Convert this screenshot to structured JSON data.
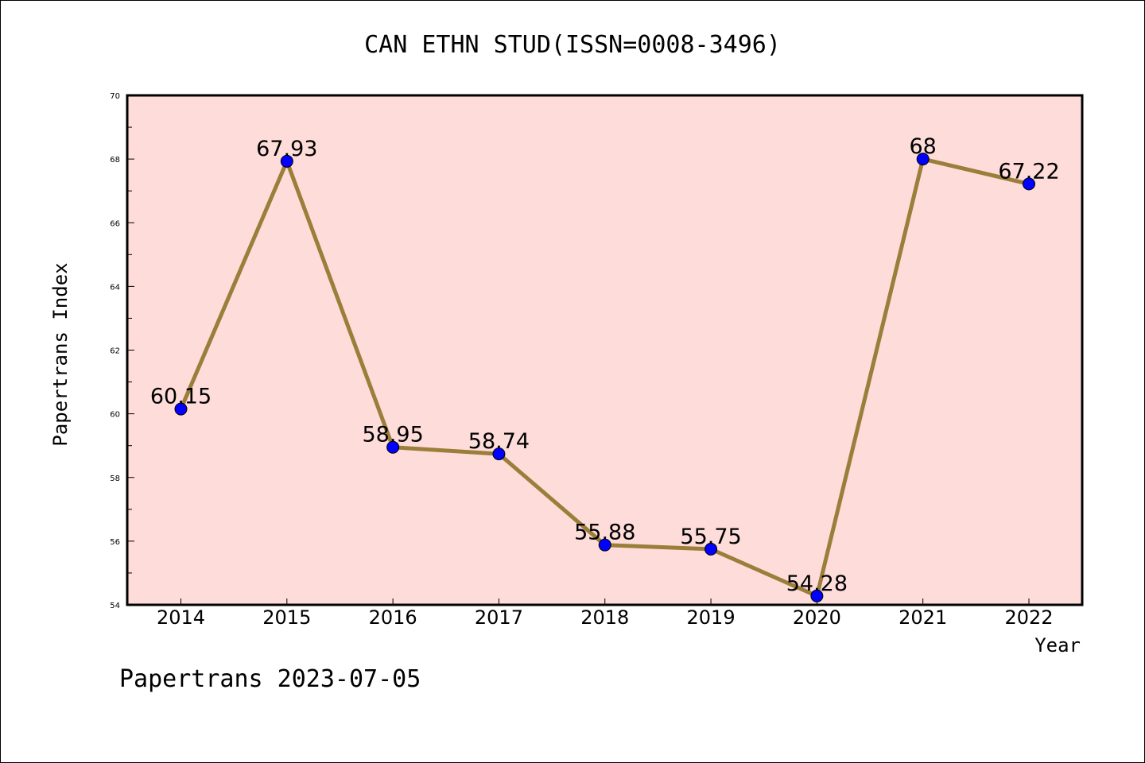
{
  "chart_data": {
    "type": "line",
    "title": "CAN ETHN STUD(ISSN=0008-3496)",
    "xlabel": "Year",
    "ylabel": "Papertrans Index",
    "categories": [
      "2014",
      "2015",
      "2016",
      "2017",
      "2018",
      "2019",
      "2020",
      "2021",
      "2022"
    ],
    "series": [
      {
        "values": [
          60.15,
          67.93,
          58.95,
          58.74,
          55.88,
          55.75,
          54.28,
          68,
          67.22
        ],
        "labels": [
          "60.15",
          "67.93",
          "58.95",
          "58.74",
          "55.88",
          "55.75",
          "54.28",
          "68",
          "67.22"
        ],
        "line_color": "#9a7e3a",
        "marker_color": "#0000ff"
      }
    ],
    "ylim": [
      54,
      70
    ],
    "yticks": [
      "54",
      "56",
      "58",
      "60",
      "62",
      "64",
      "66",
      "68",
      "70"
    ],
    "grid": false,
    "legend": "none",
    "plot_background": "#fddcda"
  },
  "footer": {
    "text": "Papertrans 2023-07-05"
  }
}
